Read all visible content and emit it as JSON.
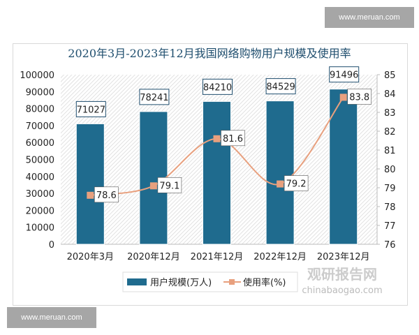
{
  "watermarks": {
    "top": "www.meruan.com",
    "bottom": "www.meruan.com",
    "logo_text": "观研报告网",
    "logo_url": "chinabaogao.com"
  },
  "chart_data": {
    "type": "bar+line",
    "title": "2020年3月-2023年12月我国网络购物用户规模及使用率",
    "categories": [
      "2020年3月",
      "2020年12月",
      "2021年12月",
      "2022年12月",
      "2023年12月"
    ],
    "series": [
      {
        "name": "用户规模(万人)",
        "type": "bar",
        "axis": "left",
        "values": [
          71027,
          78241,
          84210,
          84529,
          91496
        ],
        "color": "#1f6b8e"
      },
      {
        "name": "使用率(%)",
        "type": "line",
        "axis": "right",
        "values": [
          78.6,
          79.1,
          81.6,
          79.2,
          83.8
        ],
        "color": "#e8a07e"
      }
    ],
    "left_axis": {
      "range": [
        0,
        100000
      ],
      "ticks": [
        0,
        10000,
        20000,
        30000,
        40000,
        50000,
        60000,
        70000,
        80000,
        90000,
        100000
      ]
    },
    "right_axis": {
      "range": [
        76,
        85
      ],
      "ticks": [
        76,
        77,
        78,
        79,
        80,
        81,
        82,
        83,
        84,
        85
      ]
    },
    "legend": "bottom",
    "grid": false
  }
}
